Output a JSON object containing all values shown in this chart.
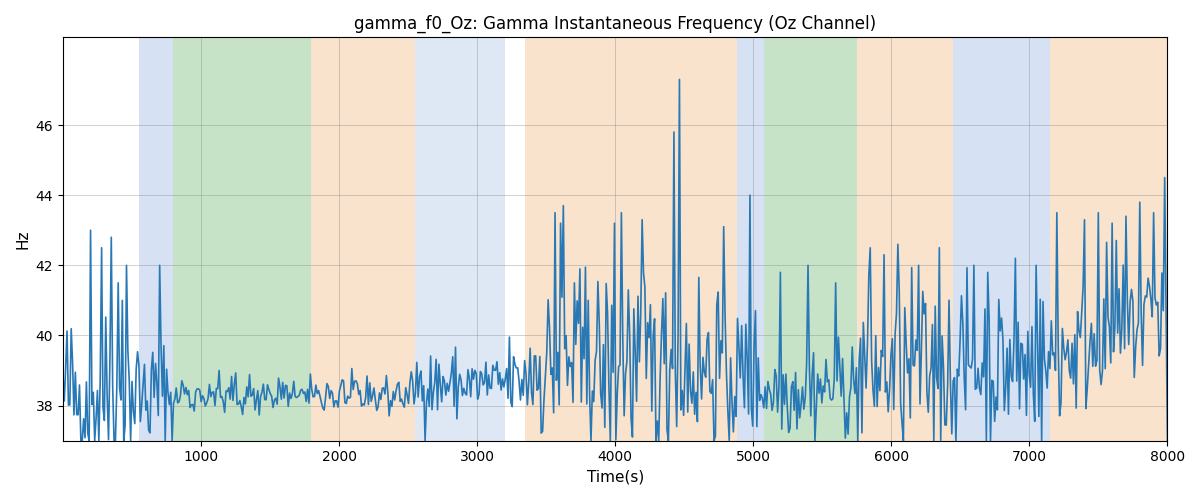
{
  "title": "gamma_f0_Oz: Gamma Instantaneous Frequency (Oz Channel)",
  "xlabel": "Time(s)",
  "ylabel": "Hz",
  "xlim": [
    0,
    8000
  ],
  "ylim": [
    37.0,
    48.5
  ],
  "yticks": [
    38,
    40,
    42,
    44,
    46
  ],
  "xticks": [
    1000,
    2000,
    3000,
    4000,
    5000,
    6000,
    7000,
    8000
  ],
  "background_bands": [
    {
      "xmin": 550,
      "xmax": 800,
      "color": "#AEC6E8",
      "alpha": 0.5
    },
    {
      "xmin": 800,
      "xmax": 1800,
      "color": "#90C990",
      "alpha": 0.5
    },
    {
      "xmin": 1800,
      "xmax": 2550,
      "color": "#F5C89A",
      "alpha": 0.5
    },
    {
      "xmin": 2550,
      "xmax": 3200,
      "color": "#AEC6E8",
      "alpha": 0.4
    },
    {
      "xmin": 3200,
      "xmax": 3350,
      "color": "#FFFFFF",
      "alpha": 0.0
    },
    {
      "xmin": 3350,
      "xmax": 4880,
      "color": "#F5C89A",
      "alpha": 0.5
    },
    {
      "xmin": 4880,
      "xmax": 5080,
      "color": "#AEC6E8",
      "alpha": 0.5
    },
    {
      "xmin": 5080,
      "xmax": 5750,
      "color": "#90C990",
      "alpha": 0.5
    },
    {
      "xmin": 5750,
      "xmax": 6450,
      "color": "#F5C89A",
      "alpha": 0.5
    },
    {
      "xmin": 6450,
      "xmax": 7150,
      "color": "#AEC6E8",
      "alpha": 0.5
    },
    {
      "xmin": 7150,
      "xmax": 8200,
      "color": "#F5C89A",
      "alpha": 0.5
    }
  ],
  "line_color": "#2878B5",
  "line_width": 1.2,
  "figsize": [
    12.0,
    5.0
  ],
  "dpi": 100,
  "seed": 42,
  "n_points": 800,
  "base_freq": 38.3
}
